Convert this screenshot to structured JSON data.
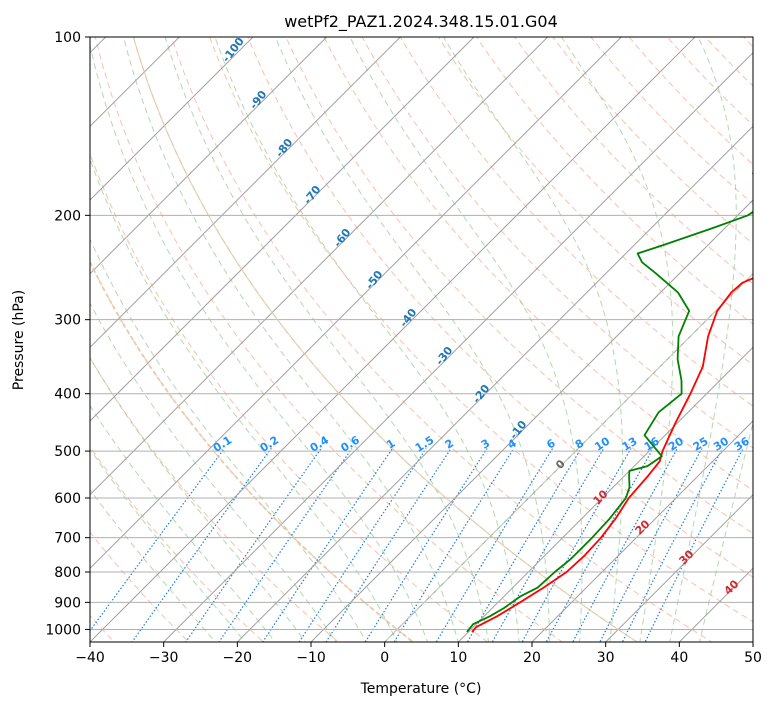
{
  "chart_data": {
    "type": "line",
    "title": "wetPf2_PAZ1.2024.348.15.01.G04",
    "xlabel": "Temperature (°C)",
    "ylabel": "Pressure (hPa)",
    "xlim": [
      -40,
      50
    ],
    "ylim": [
      1050,
      100
    ],
    "y_scale": "log",
    "x_ticks": [
      -40,
      -30,
      -20,
      -10,
      0,
      10,
      20,
      30,
      40,
      50
    ],
    "x_tick_labels": [
      "−40",
      "−30",
      "−20",
      "−10",
      "0",
      "10",
      "20",
      "30",
      "40",
      "50"
    ],
    "y_ticks": [
      100,
      200,
      300,
      400,
      500,
      600,
      700,
      800,
      900,
      1000
    ],
    "y_tick_labels": [
      "100",
      "200",
      "300",
      "400",
      "500",
      "600",
      "700",
      "800",
      "900",
      "1000"
    ],
    "grid": true,
    "series": [
      {
        "color": "#ff0000",
        "points": [
          [
            1010,
            10.5
          ],
          [
            990,
            10.4
          ],
          [
            950,
            11.8
          ],
          [
            900,
            13.0
          ],
          [
            850,
            14.2
          ],
          [
            800,
            15.2
          ],
          [
            750,
            15.4
          ],
          [
            700,
            15.2
          ],
          [
            650,
            14.6
          ],
          [
            600,
            13.6
          ],
          [
            550,
            13.2
          ],
          [
            520,
            12.8
          ],
          [
            500,
            11.8
          ],
          [
            450,
            9.8
          ],
          [
            400,
            7.8
          ],
          [
            360,
            5.8
          ],
          [
            320,
            2.4
          ],
          [
            290,
            0.2
          ],
          [
            270,
            -0.4
          ],
          [
            260,
            -0.2
          ],
          [
            250,
            1.6
          ],
          [
            230,
            6.0
          ],
          [
            210,
            12.2
          ],
          [
            200,
            15.6
          ],
          [
            190,
            18.6
          ],
          [
            180,
            21.2
          ],
          [
            170,
            22.4
          ],
          [
            160,
            22.6
          ],
          [
            150,
            22.2
          ],
          [
            140,
            22.0
          ],
          [
            130,
            23.2
          ],
          [
            120,
            25.2
          ],
          [
            110,
            26.4
          ],
          [
            100,
            26.4
          ]
        ]
      },
      {
        "color": "#008000",
        "points": [
          [
            1010,
            9.8
          ],
          [
            980,
            9.6
          ],
          [
            950,
            10.8
          ],
          [
            920,
            11.6
          ],
          [
            880,
            12.2
          ],
          [
            850,
            13.4
          ],
          [
            800,
            13.6
          ],
          [
            760,
            14.0
          ],
          [
            700,
            14.0
          ],
          [
            650,
            13.8
          ],
          [
            600,
            13.2
          ],
          [
            575,
            12.2
          ],
          [
            550,
            10.6
          ],
          [
            540,
            10.0
          ],
          [
            530,
            11.8
          ],
          [
            510,
            12.4
          ],
          [
            470,
            7.2
          ],
          [
            430,
            6.0
          ],
          [
            400,
            6.6
          ],
          [
            380,
            4.8
          ],
          [
            350,
            1.4
          ],
          [
            320,
            -1.6
          ],
          [
            290,
            -3.6
          ],
          [
            270,
            -7.6
          ],
          [
            250,
            -13.4
          ],
          [
            240,
            -16.6
          ],
          [
            232,
            -18.4
          ],
          [
            225,
            -16.2
          ],
          [
            210,
            -11.6
          ],
          [
            200,
            -8.6
          ],
          [
            190,
            -7.8
          ],
          [
            180,
            -10.4
          ],
          [
            170,
            -13.6
          ],
          [
            162,
            -14.6
          ],
          [
            155,
            -11.0
          ],
          [
            145,
            -7.2
          ],
          [
            135,
            -5.2
          ],
          [
            125,
            -4.4
          ],
          [
            115,
            -3.8
          ],
          [
            105,
            -1.8
          ],
          [
            100,
            0.8
          ]
        ]
      }
    ],
    "mixing_ratio_labels": [
      "0.1",
      "0.2",
      "0.4",
      "0.6",
      "1",
      "1.5",
      "2",
      "3",
      "4",
      "6",
      "8",
      "10",
      "13",
      "16",
      "20",
      "25",
      "30",
      "36"
    ],
    "moist_adiabat_labels": [
      "-100",
      "-90",
      "-80",
      "-70",
      "-60",
      "-50",
      "-40",
      "-30",
      "-20",
      "-10"
    ],
    "dry_adiabat_labels": [
      "10",
      "20",
      "30",
      "40"
    ],
    "zero_label": "0"
  }
}
